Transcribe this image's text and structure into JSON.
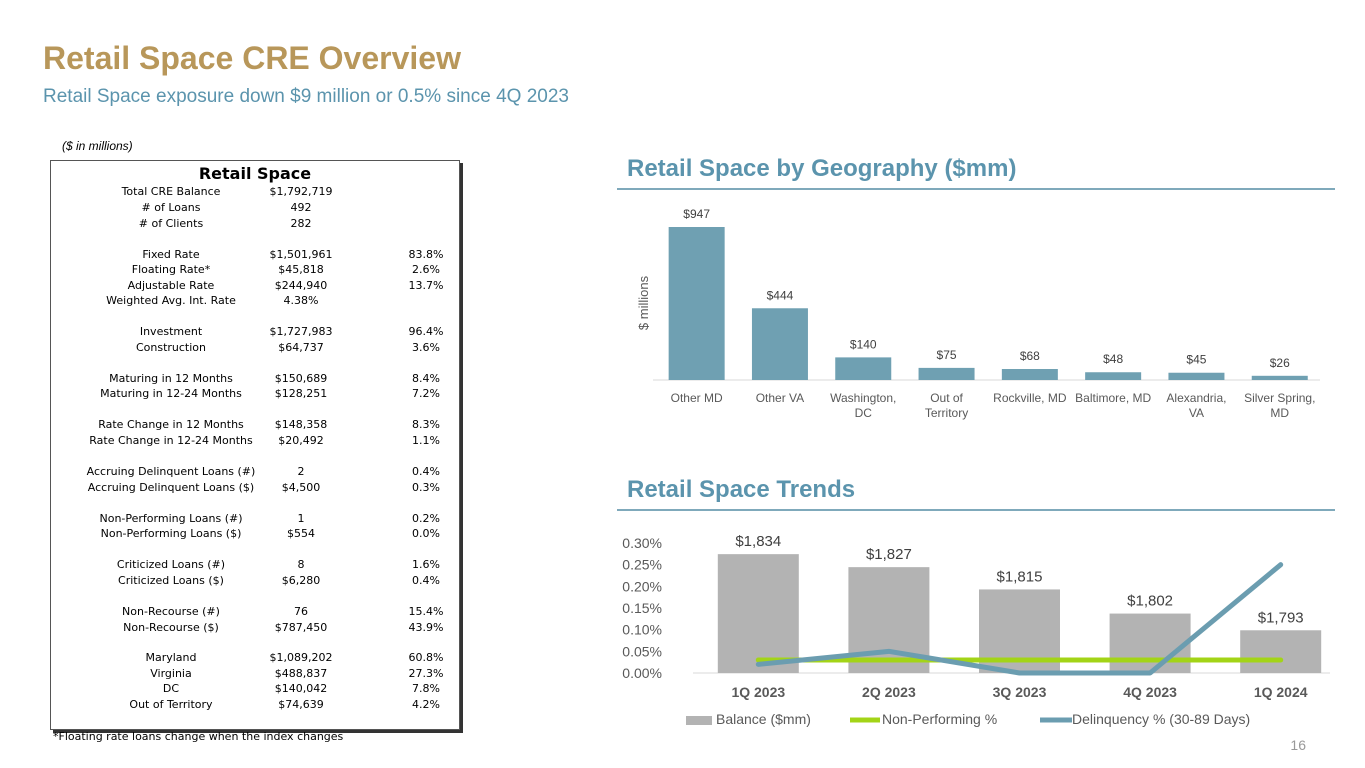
{
  "header": {
    "title": "Retail Space CRE Overview",
    "subtitle": "Retail Space exposure down $9 million or 0.5% since 4Q 2023"
  },
  "table": {
    "unit_note": "($ in millions)",
    "heading": "Retail Space",
    "rows": [
      {
        "label": "Total CRE Balance",
        "value": "$1,792,719",
        "pct": ""
      },
      {
        "label": "# of Loans",
        "value": "492",
        "pct": ""
      },
      {
        "label": "# of Clients",
        "value": "282",
        "pct": ""
      },
      {
        "label": "Fixed Rate",
        "value": "$1,501,961",
        "pct": "83.8%"
      },
      {
        "label": "Floating Rate*",
        "value": "$45,818",
        "pct": "2.6%"
      },
      {
        "label": "Adjustable Rate",
        "value": "$244,940",
        "pct": "13.7%"
      },
      {
        "label": "Weighted Avg. Int. Rate",
        "value": "4.38%",
        "pct": ""
      },
      {
        "label": "Investment",
        "value": "$1,727,983",
        "pct": "96.4%"
      },
      {
        "label": "Construction",
        "value": "$64,737",
        "pct": "3.6%"
      },
      {
        "label": "Maturing in 12 Months",
        "value": "$150,689",
        "pct": "8.4%"
      },
      {
        "label": "Maturing in 12-24 Months",
        "value": "$128,251",
        "pct": "7.2%"
      },
      {
        "label": "Rate Change in 12 Months",
        "value": "$148,358",
        "pct": "8.3%"
      },
      {
        "label": "Rate Change in 12-24 Months",
        "value": "$20,492",
        "pct": "1.1%"
      },
      {
        "label": "Accruing Delinquent Loans (#)",
        "value": "2",
        "pct": "0.4%"
      },
      {
        "label": "Accruing Delinquent Loans ($)",
        "value": "$4,500",
        "pct": "0.3%"
      },
      {
        "label": "Non-Performing Loans (#)",
        "value": "1",
        "pct": "0.2%"
      },
      {
        "label": "Non-Performing Loans ($)",
        "value": "$554",
        "pct": "0.0%"
      },
      {
        "label": "Criticized Loans (#)",
        "value": "8",
        "pct": "1.6%"
      },
      {
        "label": "Criticized Loans ($)",
        "value": "$6,280",
        "pct": "0.4%"
      },
      {
        "label": "Non-Recourse (#)",
        "value": "76",
        "pct": "15.4%"
      },
      {
        "label": "Non-Recourse ($)",
        "value": "$787,450",
        "pct": "43.9%"
      },
      {
        "label": "Maryland",
        "value": "$1,089,202",
        "pct": "60.8%"
      },
      {
        "label": "Virginia",
        "value": "$488,837",
        "pct": "27.3%"
      },
      {
        "label": "DC",
        "value": "$140,042",
        "pct": "7.8%"
      },
      {
        "label": "Out of Territory",
        "value": "$74,639",
        "pct": "4.2%"
      }
    ],
    "footnote": "*Floating rate loans change when the index changes"
  },
  "page_number": "16",
  "colors": {
    "title": "#b8975a",
    "accent": "#5b94ad",
    "geo_bar": "#6fa0b2",
    "balance_bar": "#b3b3b3",
    "non_performing": "#a3d417",
    "delinquency": "#6b9db0"
  },
  "chart_data": [
    {
      "type": "bar",
      "title": "Retail Space by Geography ($mm)",
      "ylabel": "$ millions",
      "xlabel": "",
      "categories": [
        "Other MD",
        "Other VA",
        "Washington, DC",
        "Out of Territory",
        "Rockville, MD",
        "Baltimore, MD",
        "Alexandria, VA",
        "Silver Spring, MD"
      ],
      "category_lines": [
        [
          "Other MD"
        ],
        [
          "Other VA"
        ],
        [
          "Washington,",
          "DC"
        ],
        [
          "Out of",
          "Territory"
        ],
        [
          "Rockville, MD"
        ],
        [
          "Baltimore, MD"
        ],
        [
          "Alexandria,",
          "VA"
        ],
        [
          "Silver Spring,",
          "MD"
        ]
      ],
      "values": [
        947,
        444,
        140,
        75,
        68,
        48,
        45,
        26
      ],
      "data_labels": [
        "$947",
        "$444",
        "$140",
        "$75",
        "$68",
        "$48",
        "$45",
        "$26"
      ],
      "ylim": [
        0,
        947
      ]
    },
    {
      "type": "bar+line",
      "title": "Retail Space Trends",
      "categories": [
        "1Q 2023",
        "2Q 2023",
        "3Q 2023",
        "4Q 2023",
        "1Q 2024"
      ],
      "series": [
        {
          "name": "Balance ($mm)",
          "type": "bar",
          "values": [
            1834,
            1827,
            1815,
            1802,
            1793
          ],
          "data_labels": [
            "$1,834",
            "$1,827",
            "$1,815",
            "$1,802",
            "$1,793"
          ]
        },
        {
          "name": "Non-Performing %",
          "type": "line",
          "values": [
            0.03,
            0.03,
            0.03,
            0.03,
            0.03
          ]
        },
        {
          "name": "Delinquency % (30-89 Days)",
          "type": "line",
          "values": [
            0.02,
            0.05,
            0.0,
            0.0,
            0.25
          ]
        }
      ],
      "y_axis": {
        "ticks": [
          "0.00%",
          "0.05%",
          "0.10%",
          "0.15%",
          "0.20%",
          "0.25%",
          "0.30%"
        ],
        "ylim": [
          0,
          0.3
        ]
      },
      "bar_axis_range": [
        1770,
        1840
      ],
      "legend": "bottom"
    }
  ]
}
